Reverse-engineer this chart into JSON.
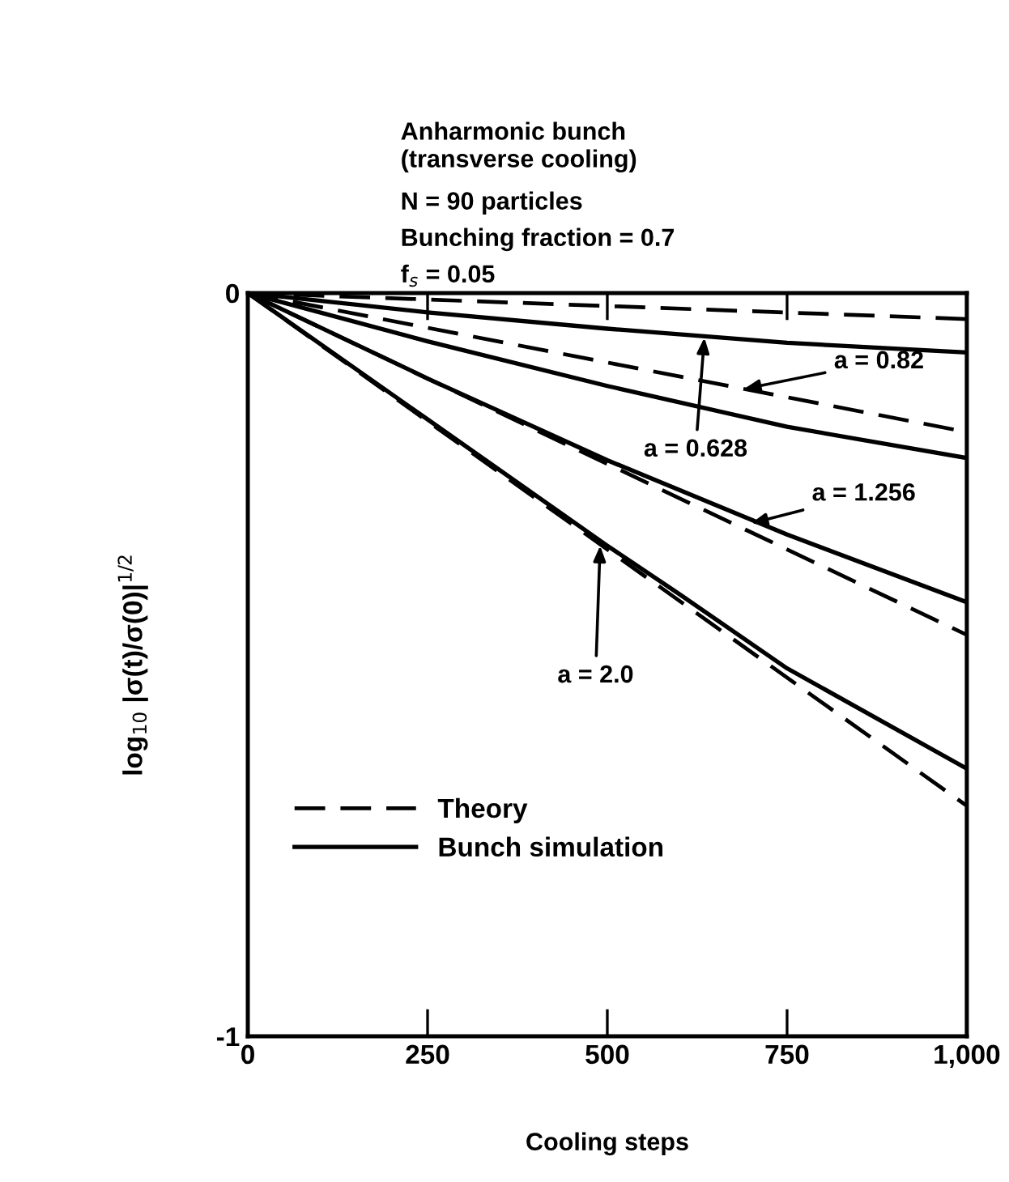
{
  "chart_data": {
    "type": "line",
    "title": "Anharmonic bunch\n(transverse cooling)",
    "subtitle": "N = 90 particles\nBunching fraction = 0.7\nf$_{s}$ = 0.05",
    "xlabel": "Cooling steps",
    "ylabel": "log$_{10}$ |σ(t)/σ(0)|$^{1/2}$",
    "xlim": [
      0,
      1000
    ],
    "ylim": [
      -1,
      0
    ],
    "xticks": [
      0,
      250,
      500,
      750,
      {
        "value": 1000,
        "label": "1,000"
      }
    ],
    "yticks": [
      0,
      -1
    ],
    "grid": false,
    "legend": "bottom left",
    "marker": "none",
    "series": [
      {
        "name": "Theory",
        "color": "#000000",
        "line_style": "dashed",
        "x": [
          0,
          1000
        ],
        "values": [
          0,
          -0.035
        ]
      },
      {
        "name": "Bunch simulation",
        "color": "#000000",
        "line_style": "solid",
        "x": [
          0,
          250,
          500,
          750,
          1000
        ],
        "values": [
          0,
          -0.026,
          -0.048,
          -0.067,
          -0.08
        ]
      },
      {
        "color": "#000000",
        "line_style": "dashed",
        "x": [
          0,
          1000
        ],
        "values": [
          0,
          -0.187
        ]
      },
      {
        "color": "#000000",
        "line_style": "solid",
        "x": [
          0,
          250,
          500,
          750,
          1000
        ],
        "values": [
          0,
          -0.065,
          -0.125,
          -0.18,
          -0.222
        ]
      },
      {
        "color": "#000000",
        "line_style": "dashed",
        "x": [
          0,
          1000
        ],
        "values": [
          0,
          -0.46
        ]
      },
      {
        "color": "#000000",
        "line_style": "solid",
        "x": [
          0,
          250,
          500,
          750,
          1000
        ],
        "values": [
          0,
          -0.115,
          -0.225,
          -0.325,
          -0.416
        ]
      },
      {
        "color": "#000000",
        "line_style": "dashed",
        "x": [
          0,
          1000
        ],
        "values": [
          0,
          -0.69
        ]
      },
      {
        "color": "#000000",
        "line_style": "solid",
        "x": [
          0,
          250,
          500,
          600,
          750,
          1000
        ],
        "values": [
          0,
          -0.17,
          -0.34,
          -0.405,
          -0.505,
          -0.64
        ]
      }
    ],
    "annotations": [
      {
        "text": "a = 0.82",
        "x": 690,
        "y": -0.129
      },
      {
        "text": "a = 0.628",
        "x": 635,
        "y": -0.06
      },
      {
        "text": "a = 1.256",
        "x": 700,
        "y": -0.31
      },
      {
        "text": "a = 2.0",
        "x": 490,
        "y": -0.34
      }
    ]
  }
}
